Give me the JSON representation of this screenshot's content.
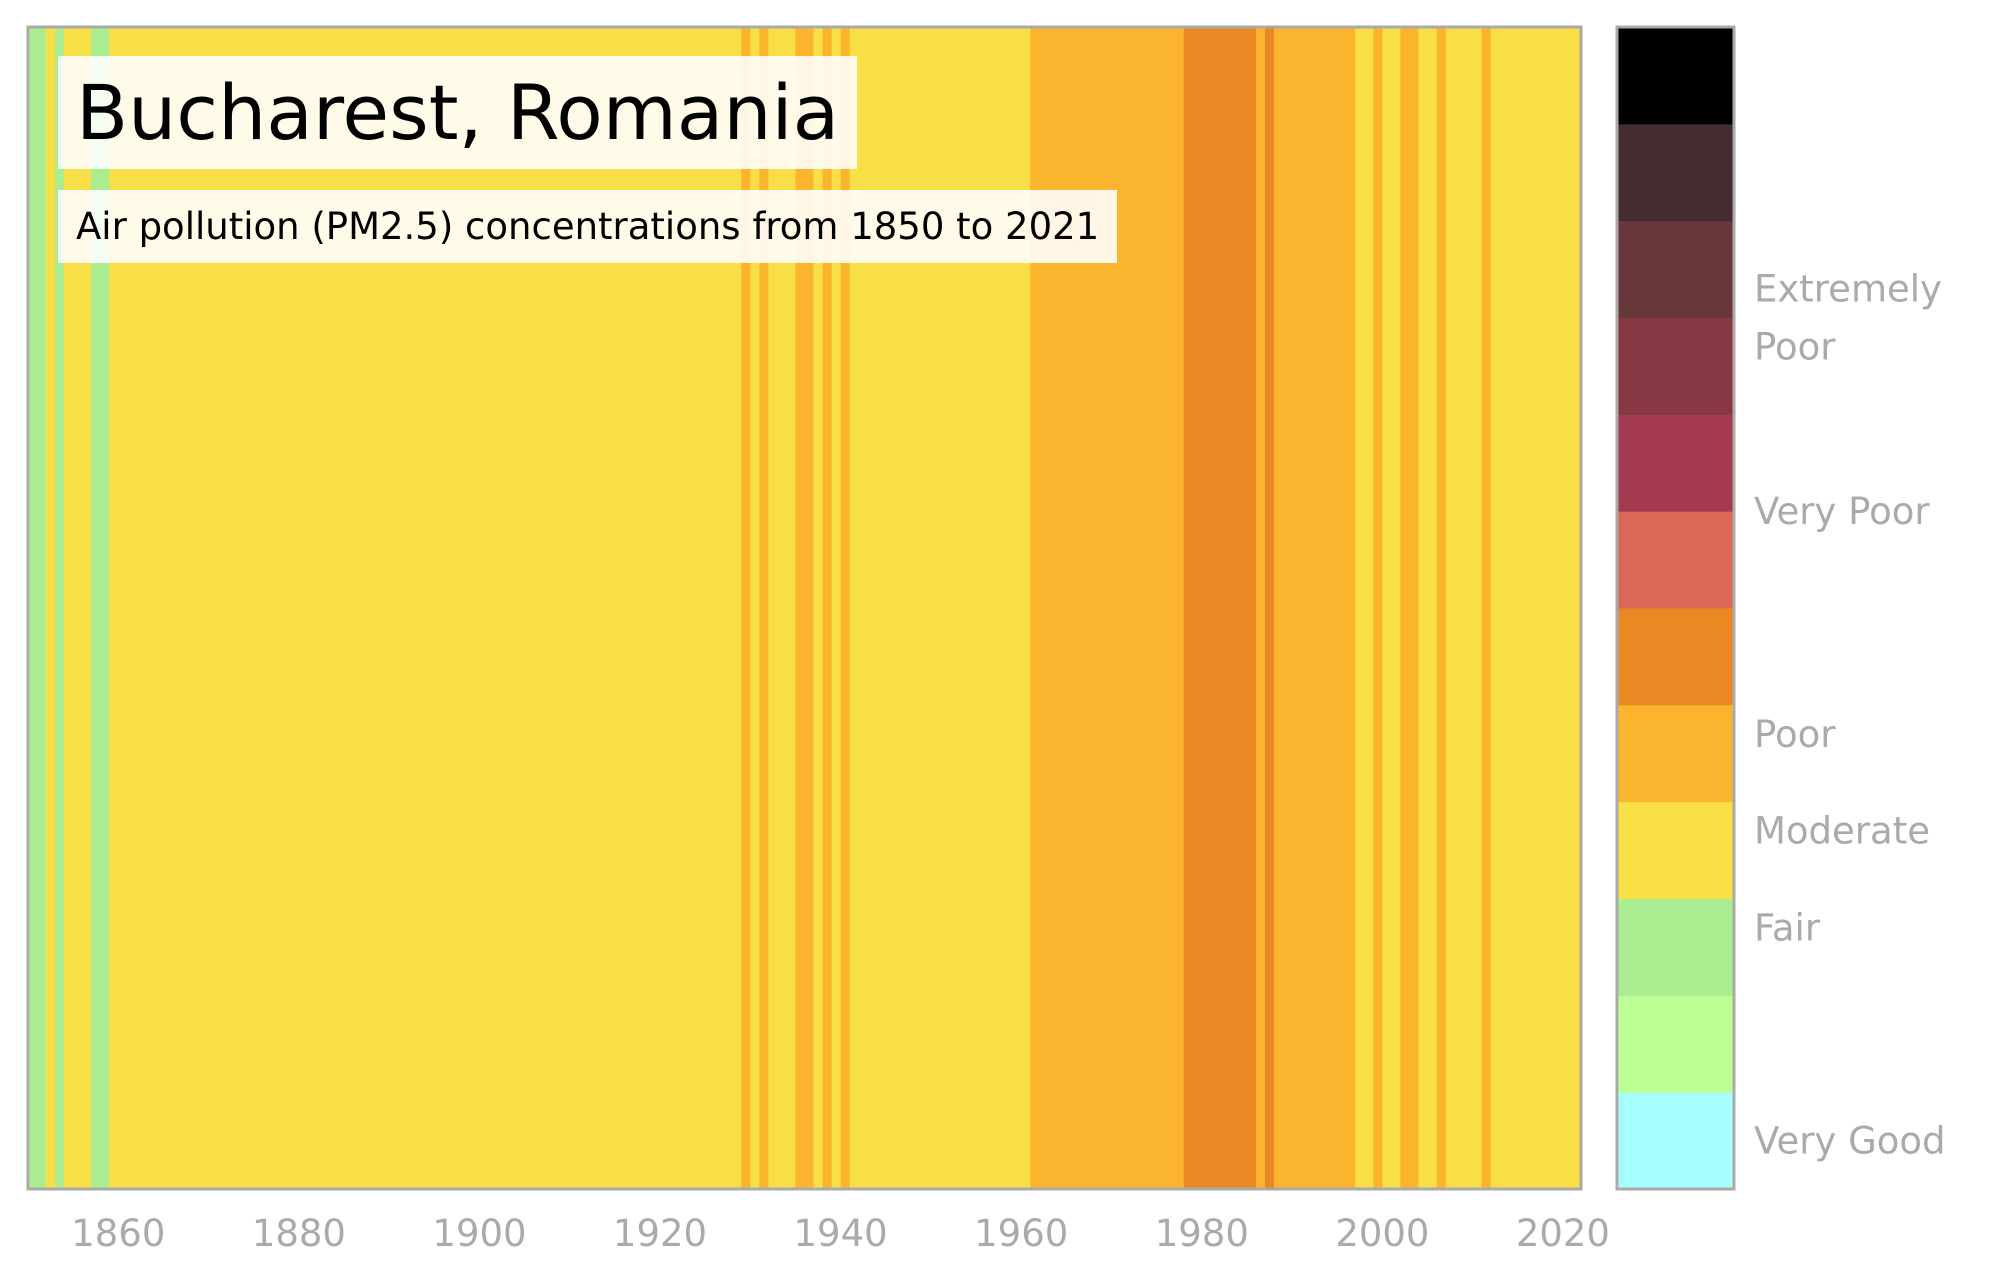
{
  "title": "Bucharest, Romania",
  "subtitle": "Air pollution (PM2.5) concentrations from 1850 to 2021",
  "chart_data": {
    "type": "heatmap",
    "title": "Bucharest, Romania",
    "subtitle": "Air pollution (PM2.5) concentrations from 1850 to 2021",
    "xlim": [
      1850,
      2022
    ],
    "x_ticks": [
      "1860",
      "1880",
      "1900",
      "1920",
      "1940",
      "1960",
      "1980",
      "2000",
      "2020"
    ],
    "x_tick_values": [
      1860,
      1880,
      1900,
      1920,
      1940,
      1960,
      1980,
      2000,
      2020
    ],
    "grid": false,
    "colorbar": {
      "levels": [
        {
          "level": 0,
          "color": "#a6ffff"
        },
        {
          "level": 1,
          "color": "#bdff95"
        },
        {
          "level": 2,
          "color": "#aaec90"
        },
        {
          "level": 3,
          "color": "#f8df46"
        },
        {
          "level": 4,
          "color": "#fbb42d"
        },
        {
          "level": 5,
          "color": "#e88924"
        },
        {
          "level": 6,
          "color": "#dc6756"
        },
        {
          "level": 7,
          "color": "#a43a4f"
        },
        {
          "level": 8,
          "color": "#873843"
        },
        {
          "level": 9,
          "color": "#67373a"
        },
        {
          "level": 10,
          "color": "#452c30"
        },
        {
          "level": 11,
          "color": "#000000"
        }
      ],
      "labels": [
        {
          "text": "Very Good",
          "level": 0.5
        },
        {
          "text": "Fair",
          "level": 2.7
        },
        {
          "text": "Moderate",
          "level": 3.7
        },
        {
          "text": "Poor",
          "level": 4.7
        },
        {
          "text": "Very Poor",
          "level": 7.0
        },
        {
          "text": "Extremely Poor",
          "level": 9.0
        }
      ]
    },
    "segments": [
      {
        "start": 1850,
        "end": 1852,
        "level": 2
      },
      {
        "start": 1852,
        "end": 1853,
        "level": 3
      },
      {
        "start": 1853,
        "end": 1854,
        "level": 2
      },
      {
        "start": 1854,
        "end": 1857,
        "level": 3
      },
      {
        "start": 1857,
        "end": 1859,
        "level": 2
      },
      {
        "start": 1859,
        "end": 1929,
        "level": 3
      },
      {
        "start": 1929,
        "end": 1930,
        "level": 4
      },
      {
        "start": 1930,
        "end": 1931,
        "level": 3
      },
      {
        "start": 1931,
        "end": 1932,
        "level": 4
      },
      {
        "start": 1932,
        "end": 1935,
        "level": 3
      },
      {
        "start": 1935,
        "end": 1937,
        "level": 4
      },
      {
        "start": 1937,
        "end": 1938,
        "level": 3
      },
      {
        "start": 1938,
        "end": 1939,
        "level": 4
      },
      {
        "start": 1939,
        "end": 1940,
        "level": 3
      },
      {
        "start": 1940,
        "end": 1941,
        "level": 4
      },
      {
        "start": 1941,
        "end": 1961,
        "level": 3
      },
      {
        "start": 1961,
        "end": 1978,
        "level": 4
      },
      {
        "start": 1978,
        "end": 1986,
        "level": 5
      },
      {
        "start": 1986,
        "end": 1987,
        "level": 4
      },
      {
        "start": 1987,
        "end": 1988,
        "level": 5
      },
      {
        "start": 1988,
        "end": 1997,
        "level": 4
      },
      {
        "start": 1997,
        "end": 1999,
        "level": 3
      },
      {
        "start": 1999,
        "end": 2000,
        "level": 4
      },
      {
        "start": 2000,
        "end": 2002,
        "level": 3
      },
      {
        "start": 2002,
        "end": 2004,
        "level": 4
      },
      {
        "start": 2004,
        "end": 2006,
        "level": 3
      },
      {
        "start": 2006,
        "end": 2007,
        "level": 4
      },
      {
        "start": 2007,
        "end": 2011,
        "level": 3
      },
      {
        "start": 2011,
        "end": 2012,
        "level": 4
      },
      {
        "start": 2012,
        "end": 2022,
        "level": 3
      }
    ]
  }
}
